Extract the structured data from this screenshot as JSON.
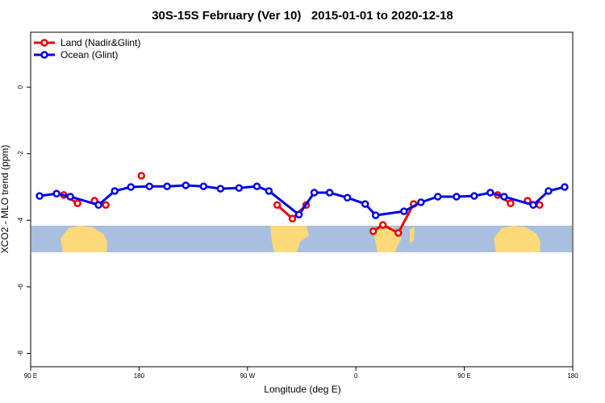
{
  "chart_data": {
    "type": "line",
    "title": "30S-15S February (Ver 10)   2015-01-01 to 2020-12-18",
    "x_label": "Longitude (deg E)",
    "y_label": "XCO2 - MLO trend (ppm)",
    "xlim": [
      90,
      540
    ],
    "xticks": [
      {
        "value": 90,
        "label": "90 E"
      },
      {
        "value": 180,
        "label": "180"
      },
      {
        "value": 270,
        "label": "90 W"
      },
      {
        "value": 360,
        "label": "0"
      },
      {
        "value": 450,
        "label": "90 E"
      },
      {
        "value": 540,
        "label": "180"
      }
    ],
    "ylim": [
      -8.4,
      1.65
    ],
    "yticks": [
      0,
      -2,
      -4,
      -6,
      -8
    ],
    "legend": "top-left",
    "series": [
      {
        "name": "Land (Nadir&Glint)",
        "color": "#ee0000",
        "x": [
          117.5,
          128.9,
          null,
          143.0,
          152.4,
          null,
          181.9,
          null,
          294.6,
          307.3,
          318.7,
          null,
          374.4,
          382.4,
          395.2,
          407.9,
          null,
          477.7,
          488.4,
          null,
          502.5,
          512.5
        ],
        "values": [
          -3.24,
          -3.49,
          null,
          -3.41,
          -3.54,
          null,
          -2.66,
          null,
          -3.54,
          -3.95,
          -3.54,
          null,
          -4.33,
          -4.14,
          -4.38,
          -3.51,
          null,
          -3.24,
          -3.49,
          null,
          -3.41,
          -3.54
        ]
      },
      {
        "name": "Ocean (Glint)",
        "color": "#0000ee",
        "x": [
          97.4,
          111.5,
          122.9,
          146.3,
          159.8,
          173.2,
          188.6,
          203.3,
          218.8,
          233.5,
          247.6,
          263.0,
          277.8,
          287.8,
          312.7,
          325.4,
          338.2,
          352.9,
          367.7,
          376.4,
          399.9,
          414.0,
          428.0,
          443.5,
          458.2,
          471.6,
          483.0,
          507.2,
          519.9,
          533.3
        ],
        "values": [
          -3.27,
          -3.2,
          -3.29,
          -3.54,
          -3.12,
          -3.0,
          -2.98,
          -2.98,
          -2.95,
          -2.98,
          -3.05,
          -3.03,
          -2.98,
          -3.12,
          -3.83,
          -3.17,
          -3.17,
          -3.32,
          -3.51,
          -3.85,
          -3.73,
          -3.46,
          -3.29,
          -3.29,
          -3.27,
          -3.17,
          -3.29,
          -3.54,
          -3.12,
          -3.0
        ]
      }
    ]
  }
}
